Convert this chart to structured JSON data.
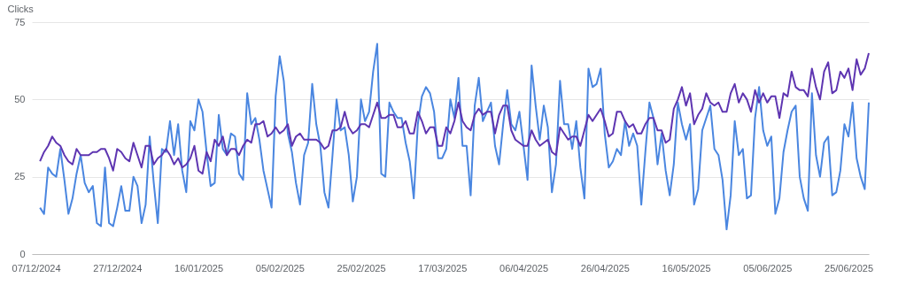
{
  "chart_data": {
    "type": "line",
    "ylabel": "Clicks",
    "ylim": [
      0,
      75
    ],
    "yticks": [
      0,
      25,
      50,
      75
    ],
    "grid": "y",
    "line_style": "solid",
    "xlim": [
      "2024-12-06",
      "2025-06-30"
    ],
    "xticks": [
      {
        "value": "2024-12-07",
        "label": "07/12/2024"
      },
      {
        "value": "2024-12-27",
        "label": "27/12/2024"
      },
      {
        "value": "2025-01-16",
        "label": "16/01/2025"
      },
      {
        "value": "2025-02-05",
        "label": "05/02/2025"
      },
      {
        "value": "2025-02-25",
        "label": "25/02/2025"
      },
      {
        "value": "2025-03-17",
        "label": "17/03/2025"
      },
      {
        "value": "2025-04-06",
        "label": "06/04/2025"
      },
      {
        "value": "2025-04-26",
        "label": "26/04/2025"
      },
      {
        "value": "2025-05-16",
        "label": "16/05/2025"
      },
      {
        "value": "2025-06-05",
        "label": "05/06/2025"
      },
      {
        "value": "2025-06-25",
        "label": "25/06/2025"
      }
    ],
    "x": [
      "2024-12-08",
      "2024-12-09",
      "2024-12-10",
      "2024-12-11",
      "2024-12-12",
      "2024-12-13",
      "2024-12-14",
      "2024-12-15",
      "2024-12-16",
      "2024-12-17",
      "2024-12-18",
      "2024-12-19",
      "2024-12-20",
      "2024-12-21",
      "2024-12-22",
      "2024-12-23",
      "2024-12-24",
      "2024-12-25",
      "2024-12-26",
      "2024-12-27",
      "2024-12-28",
      "2024-12-29",
      "2024-12-30",
      "2024-12-31",
      "2025-01-01",
      "2025-01-02",
      "2025-01-03",
      "2025-01-04",
      "2025-01-05",
      "2025-01-06",
      "2025-01-07",
      "2025-01-08",
      "2025-01-09",
      "2025-01-10",
      "2025-01-11",
      "2025-01-12",
      "2025-01-13",
      "2025-01-14",
      "2025-01-15",
      "2025-01-16",
      "2025-01-17",
      "2025-01-18",
      "2025-01-19",
      "2025-01-20",
      "2025-01-21",
      "2025-01-22",
      "2025-01-23",
      "2025-01-24",
      "2025-01-25",
      "2025-01-26",
      "2025-01-27",
      "2025-01-28",
      "2025-01-29",
      "2025-01-30",
      "2025-01-31",
      "2025-02-01",
      "2025-02-02",
      "2025-02-03",
      "2025-02-04",
      "2025-02-05",
      "2025-02-06",
      "2025-02-07",
      "2025-02-08",
      "2025-02-09",
      "2025-02-10",
      "2025-02-11",
      "2025-02-12",
      "2025-02-13",
      "2025-02-14",
      "2025-02-15",
      "2025-02-16",
      "2025-02-17",
      "2025-02-18",
      "2025-02-19",
      "2025-02-20",
      "2025-02-21",
      "2025-02-22",
      "2025-02-23",
      "2025-02-24",
      "2025-02-25",
      "2025-02-26",
      "2025-02-27",
      "2025-02-28",
      "2025-03-01",
      "2025-03-02",
      "2025-03-03",
      "2025-03-04",
      "2025-03-05",
      "2025-03-06",
      "2025-03-07",
      "2025-03-08",
      "2025-03-09",
      "2025-03-10",
      "2025-03-11",
      "2025-03-12",
      "2025-03-13",
      "2025-03-14",
      "2025-03-15",
      "2025-03-16",
      "2025-03-17",
      "2025-03-18",
      "2025-03-19",
      "2025-03-20",
      "2025-03-21",
      "2025-03-22",
      "2025-03-23",
      "2025-03-24",
      "2025-03-25",
      "2025-03-26",
      "2025-03-27",
      "2025-03-28",
      "2025-03-29",
      "2025-03-30",
      "2025-03-31",
      "2025-04-01",
      "2025-04-02",
      "2025-04-03",
      "2025-04-04",
      "2025-04-05",
      "2025-04-06",
      "2025-04-07",
      "2025-04-08",
      "2025-04-09",
      "2025-04-10",
      "2025-04-11",
      "2025-04-12",
      "2025-04-13",
      "2025-04-14",
      "2025-04-15",
      "2025-04-16",
      "2025-04-17",
      "2025-04-18",
      "2025-04-19",
      "2025-04-20",
      "2025-04-21",
      "2025-04-22",
      "2025-04-23",
      "2025-04-24",
      "2025-04-25",
      "2025-04-26",
      "2025-04-27",
      "2025-04-28",
      "2025-04-29",
      "2025-04-30",
      "2025-05-01",
      "2025-05-02",
      "2025-05-03",
      "2025-05-04",
      "2025-05-05",
      "2025-05-06",
      "2025-05-07",
      "2025-05-08",
      "2025-05-09",
      "2025-05-10",
      "2025-05-11",
      "2025-05-12",
      "2025-05-13",
      "2025-05-14",
      "2025-05-15",
      "2025-05-16",
      "2025-05-17",
      "2025-05-18",
      "2025-05-19",
      "2025-05-20",
      "2025-05-21",
      "2025-05-22",
      "2025-05-23",
      "2025-05-24",
      "2025-05-25",
      "2025-05-26",
      "2025-05-27",
      "2025-05-28",
      "2025-05-29",
      "2025-05-30",
      "2025-05-31",
      "2025-06-01",
      "2025-06-02",
      "2025-06-03",
      "2025-06-04",
      "2025-06-05",
      "2025-06-06",
      "2025-06-07",
      "2025-06-08",
      "2025-06-09",
      "2025-06-10",
      "2025-06-11",
      "2025-06-12",
      "2025-06-13",
      "2025-06-14",
      "2025-06-15",
      "2025-06-16",
      "2025-06-17",
      "2025-06-18",
      "2025-06-19",
      "2025-06-20",
      "2025-06-21",
      "2025-06-22",
      "2025-06-23",
      "2025-06-24",
      "2025-06-25",
      "2025-06-26",
      "2025-06-27",
      "2025-06-28",
      "2025-06-29",
      "2025-06-30"
    ],
    "series": [
      {
        "color": "#4a86e0",
        "values": [
          15,
          13,
          28,
          26,
          25,
          34,
          24,
          13,
          18,
          26,
          32,
          23,
          20,
          22,
          10,
          9,
          28,
          10,
          9,
          15,
          22,
          14,
          14,
          25,
          22,
          10,
          16,
          38,
          23,
          10,
          34,
          33,
          43,
          32,
          42,
          27,
          20,
          43,
          40,
          50,
          46,
          33,
          22,
          23,
          45,
          34,
          32,
          39,
          38,
          26,
          24,
          52,
          42,
          44,
          37,
          27,
          21,
          15,
          51,
          64,
          56,
          39,
          33,
          23,
          16,
          32,
          36,
          55,
          42,
          35,
          20,
          15,
          32,
          50,
          40,
          41,
          32,
          17,
          25,
          50,
          43,
          46,
          59,
          68,
          26,
          25,
          49,
          46,
          44,
          44,
          36,
          30,
          18,
          42,
          51,
          54,
          52,
          46,
          31,
          31,
          34,
          50,
          44,
          57,
          35,
          35,
          19,
          48,
          57,
          43,
          46,
          49,
          35,
          29,
          42,
          53,
          42,
          40,
          46,
          35,
          24,
          61,
          48,
          37,
          48,
          41,
          20,
          29,
          56,
          42,
          42,
          34,
          43,
          28,
          18,
          60,
          54,
          55,
          60,
          39,
          28,
          30,
          34,
          32,
          43,
          35,
          39,
          35,
          16,
          33,
          49,
          44,
          29,
          39,
          27,
          19,
          29,
          49,
          42,
          37,
          42,
          16,
          21,
          40,
          44,
          48,
          34,
          32,
          24,
          8,
          19,
          43,
          32,
          34,
          18,
          19,
          44,
          54,
          40,
          35,
          38,
          13,
          18,
          33,
          40,
          46,
          48,
          25,
          18,
          14,
          52,
          32,
          25,
          36,
          38,
          19,
          20,
          27,
          42,
          38,
          49,
          31,
          25,
          21,
          49
        ]
      },
      {
        "color": "#5e35b1",
        "values": [
          30,
          33,
          35,
          38,
          36,
          35,
          32,
          30,
          29,
          34,
          32,
          32,
          32,
          33,
          33,
          34,
          34,
          31,
          27,
          34,
          33,
          31,
          30,
          36,
          32,
          28,
          35,
          35,
          29,
          31,
          32,
          34,
          32,
          29,
          31,
          28,
          29,
          31,
          35,
          27,
          26,
          33,
          30,
          37,
          35,
          38,
          32,
          34,
          34,
          32,
          35,
          37,
          36,
          42,
          42,
          43,
          38,
          39,
          41,
          39,
          40,
          42,
          35,
          38,
          39,
          37,
          37,
          37,
          37,
          36,
          34,
          35,
          40,
          40,
          41,
          46,
          41,
          39,
          40,
          42,
          42,
          41,
          45,
          49,
          44,
          44,
          45,
          45,
          41,
          41,
          43,
          39,
          39,
          46,
          43,
          39,
          41,
          41,
          35,
          35,
          41,
          39,
          43,
          49,
          43,
          41,
          40,
          45,
          47,
          45,
          46,
          46,
          39,
          45,
          48,
          48,
          40,
          37,
          36,
          35,
          35,
          40,
          37,
          35,
          36,
          37,
          33,
          32,
          41,
          39,
          37,
          38,
          38,
          35,
          40,
          45,
          43,
          45,
          47,
          43,
          38,
          39,
          46,
          46,
          43,
          41,
          42,
          39,
          39,
          42,
          44,
          44,
          40,
          40,
          36,
          37,
          47,
          50,
          54,
          48,
          52,
          42,
          45,
          47,
          52,
          49,
          48,
          49,
          46,
          46,
          52,
          55,
          49,
          52,
          50,
          46,
          53,
          49,
          52,
          49,
          51,
          51,
          44,
          52,
          51,
          59,
          54,
          53,
          53,
          51,
          60,
          54,
          50,
          59,
          62,
          52,
          53,
          59,
          57,
          60,
          53,
          63,
          58,
          60,
          65
        ]
      }
    ]
  }
}
